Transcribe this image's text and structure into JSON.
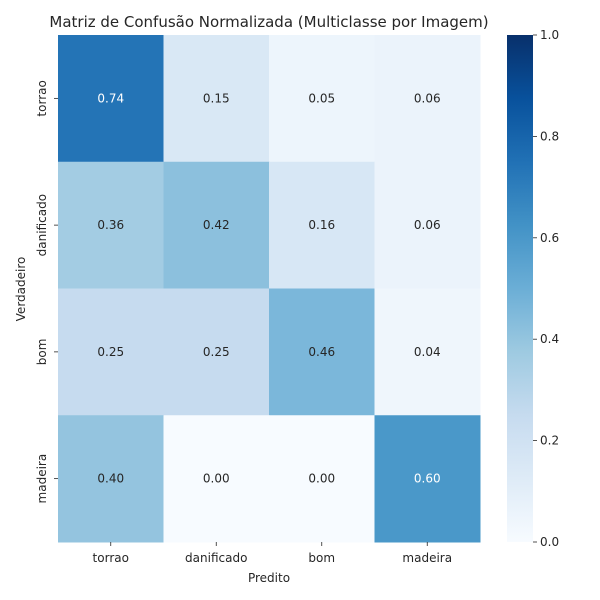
{
  "chart_data": {
    "type": "heatmap",
    "title": "Matriz de Confusão Normalizada (Multiclasse por Imagem)",
    "xlabel": "Predito",
    "ylabel": "Verdadeiro",
    "x_categories": [
      "torrao",
      "danificado",
      "bom",
      "madeira"
    ],
    "y_categories": [
      "torrao",
      "danificado",
      "bom",
      "madeira"
    ],
    "values": [
      [
        0.74,
        0.15,
        0.05,
        0.06
      ],
      [
        0.36,
        0.42,
        0.16,
        0.06
      ],
      [
        0.25,
        0.25,
        0.46,
        0.04
      ],
      [
        0.4,
        0.0,
        0.0,
        0.6
      ]
    ],
    "value_labels": [
      [
        "0.74",
        "0.15",
        "0.05",
        "0.06"
      ],
      [
        "0.36",
        "0.42",
        "0.16",
        "0.06"
      ],
      [
        "0.25",
        "0.25",
        "0.46",
        "0.04"
      ],
      [
        "0.40",
        "0.00",
        "0.00",
        "0.60"
      ]
    ],
    "colorbar": {
      "range": [
        0,
        1
      ],
      "ticks": [
        0.0,
        0.2,
        0.4,
        0.6,
        0.8,
        1.0
      ],
      "tick_labels": [
        "0.0",
        "0.2",
        "0.4",
        "0.6",
        "0.8",
        "1.0"
      ]
    },
    "colormap": "Blues",
    "colormap_stops": [
      "#f7fbff",
      "#deebf7",
      "#c6dbef",
      "#9ecae1",
      "#6baed6",
      "#4292c6",
      "#2171b5",
      "#08519c",
      "#08306b"
    ],
    "grid": false,
    "legend": "colorbar-right"
  }
}
